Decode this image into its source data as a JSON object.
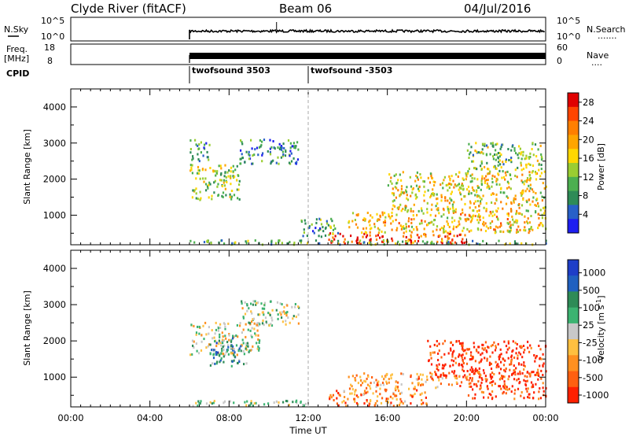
{
  "header": {
    "station": "Clyde River (fitACF)",
    "beam": "Beam 06",
    "date": "04/Jul/2016"
  },
  "panels": {
    "nsky": {
      "left_label": "N.Sky",
      "ticks_left": [
        "10^5",
        "10^0"
      ],
      "ticks_right": [
        "10^5",
        "10^0"
      ],
      "right_label": "N.Search",
      "right_marker": "......."
    },
    "freq": {
      "left_label": "Freq.",
      "unit": "[MHz]",
      "ticks_left": [
        "18",
        "8"
      ],
      "ticks_right": [
        "60",
        "0"
      ],
      "right_label": "Nave",
      "right_marker": "...."
    },
    "cpid": {
      "label": "CPID",
      "entries": [
        {
          "time": 6.0,
          "text": "twofsound 3503"
        },
        {
          "time": 12.0,
          "text": "twofsound -3503"
        }
      ]
    }
  },
  "chart_data": [
    {
      "type": "heatmap",
      "title": "",
      "xlabel": "Time UT",
      "ylabel": "Slant Range [km]",
      "x_ticks": [
        "00:00",
        "04:00",
        "08:00",
        "12:00",
        "16:00",
        "20:00",
        "00:00"
      ],
      "xlim": [
        0,
        24
      ],
      "ylim": [
        180,
        4500
      ],
      "y_ticks": [
        1000,
        2000,
        3000,
        4000
      ],
      "colorbar": {
        "label": "Power [dB]",
        "ticks": [
          "4",
          "8",
          "12",
          "16",
          "20",
          "24",
          "28"
        ],
        "range": [
          0,
          30
        ],
        "colors": [
          "#1e1ef0",
          "#2860c8",
          "#2e8b57",
          "#4caf50",
          "#9acd32",
          "#ffd700",
          "#ffa500",
          "#ff7f00",
          "#ff4500",
          "#e00000"
        ]
      },
      "regions": [
        {
          "t": [
            6.0,
            8.5
          ],
          "r": [
            1400,
            2400
          ],
          "level": 0.45
        },
        {
          "t": [
            6.0,
            7.0
          ],
          "r": [
            2500,
            3100
          ],
          "level": 0.3
        },
        {
          "t": [
            8.5,
            11.5
          ],
          "r": [
            2400,
            3100
          ],
          "level": 0.25
        },
        {
          "t": [
            11.5,
            13.5
          ],
          "r": [
            400,
            900
          ],
          "level": 0.3
        },
        {
          "t": [
            13.0,
            20.0
          ],
          "r": [
            200,
            500
          ],
          "level": 0.9
        },
        {
          "t": [
            14.0,
            24.0
          ],
          "r": [
            500,
            1100
          ],
          "level": 0.6
        },
        {
          "t": [
            16.0,
            24.0
          ],
          "r": [
            1100,
            2200
          ],
          "level": 0.55
        },
        {
          "t": [
            20.0,
            24.0
          ],
          "r": [
            2200,
            3000
          ],
          "level": 0.4
        },
        {
          "t": [
            6.0,
            24.0
          ],
          "r": [
            180,
            300
          ],
          "level": 0.35
        }
      ]
    },
    {
      "type": "heatmap",
      "title": "",
      "xlabel": "Time UT",
      "ylabel": "Slant Range [km]",
      "x_ticks": [
        "00:00",
        "04:00",
        "08:00",
        "12:00",
        "16:00",
        "20:00",
        "00:00"
      ],
      "xlim": [
        0,
        24
      ],
      "ylim": [
        180,
        4500
      ],
      "y_ticks": [
        1000,
        2000,
        3000,
        4000
      ],
      "colorbar": {
        "label": "Velocity [m s^-1]",
        "ticks": [
          "1000",
          "500",
          "100",
          "25",
          "-25",
          "-100",
          "-500",
          "-1000"
        ],
        "colors": [
          "#1e3ec8",
          "#2060c0",
          "#2e8b57",
          "#3cb371",
          "#c8c8c8",
          "#ffc040",
          "#ff9020",
          "#ff6010",
          "#ff2000"
        ]
      },
      "regions": [
        {
          "t": [
            6.0,
            9.5
          ],
          "r": [
            1600,
            2500
          ],
          "level": 0.45
        },
        {
          "t": [
            7.0,
            9.0
          ],
          "r": [
            1300,
            2100
          ],
          "level": 0.7
        },
        {
          "t": [
            8.5,
            11.5
          ],
          "r": [
            2400,
            3100
          ],
          "level": 0.5
        },
        {
          "t": [
            6.0,
            12.0
          ],
          "r": [
            180,
            350
          ],
          "level": 0.55
        },
        {
          "t": [
            13.0,
            18.0
          ],
          "r": [
            200,
            700
          ],
          "level": 0.25
        },
        {
          "t": [
            14.0,
            20.0
          ],
          "r": [
            700,
            1100
          ],
          "level": 0.3
        },
        {
          "t": [
            18.0,
            24.0
          ],
          "r": [
            1000,
            2000
          ],
          "level": 0.05
        },
        {
          "t": [
            20.0,
            24.0
          ],
          "r": [
            400,
            1200
          ],
          "level": 0.1
        }
      ]
    }
  ]
}
